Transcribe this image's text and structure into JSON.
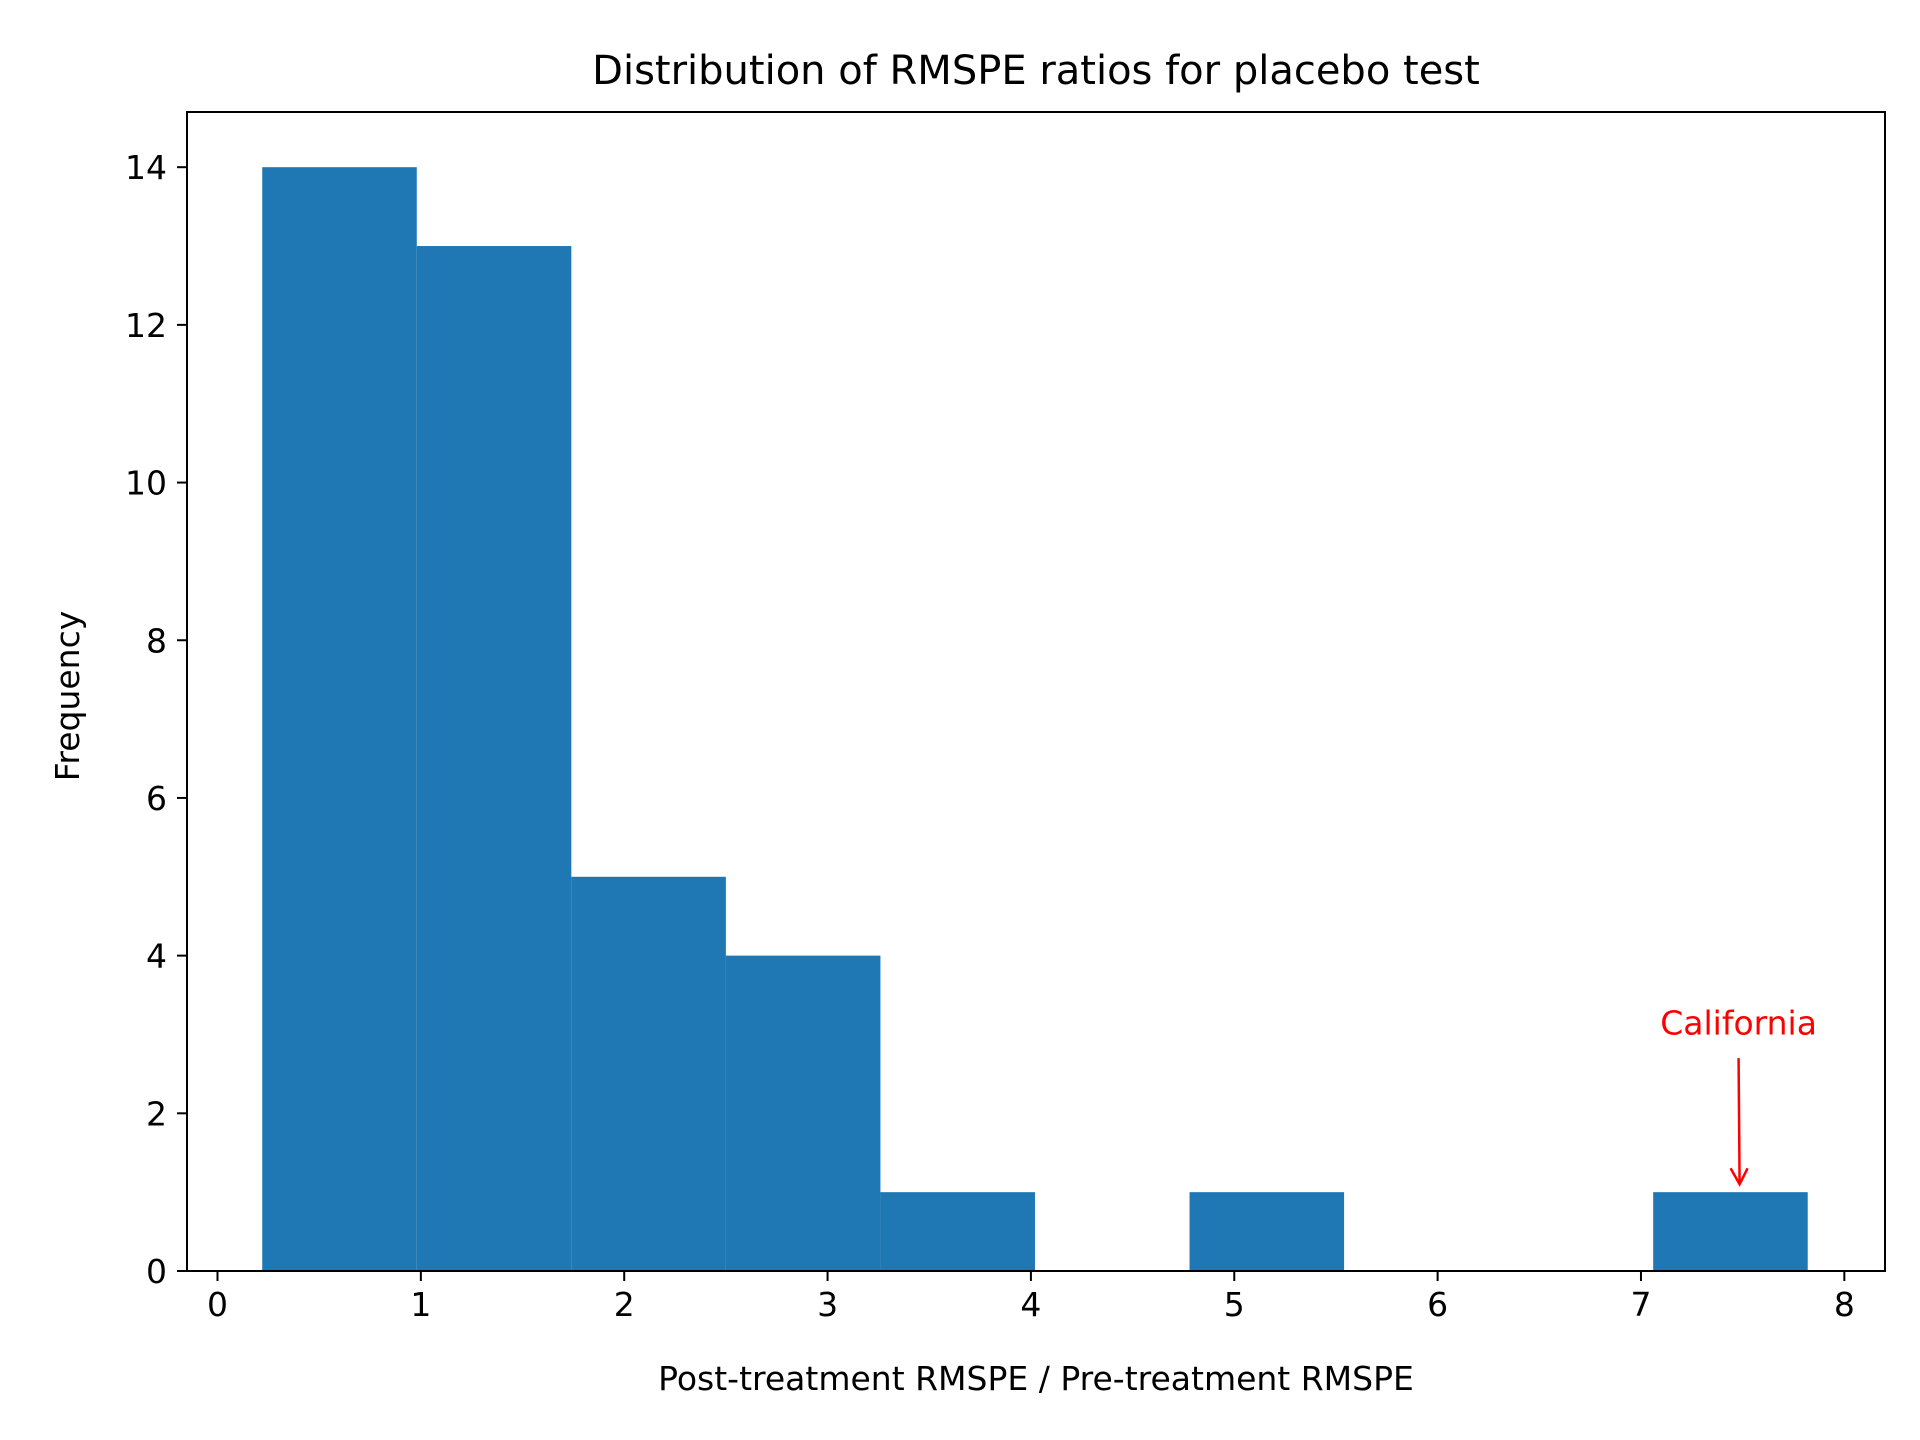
{
  "chart_data": {
    "type": "bar",
    "title": "Distribution of RMSPE ratios for placebo test",
    "xlabel": "Post-treatment RMSPE / Pre-treatment RMSPE",
    "ylabel": "Frequency",
    "xlim": [
      -0.15,
      8.2
    ],
    "ylim": [
      0,
      14.7
    ],
    "x_ticks": [
      0,
      1,
      2,
      3,
      4,
      5,
      6,
      7,
      8
    ],
    "y_ticks": [
      0,
      2,
      4,
      6,
      8,
      10,
      12,
      14
    ],
    "bins": [
      {
        "start": 0.22,
        "end": 0.98,
        "count": 14
      },
      {
        "start": 0.98,
        "end": 1.74,
        "count": 13
      },
      {
        "start": 1.74,
        "end": 2.5,
        "count": 5
      },
      {
        "start": 2.5,
        "end": 3.26,
        "count": 4
      },
      {
        "start": 3.26,
        "end": 4.02,
        "count": 1
      },
      {
        "start": 4.02,
        "end": 4.78,
        "count": 0
      },
      {
        "start": 4.78,
        "end": 5.54,
        "count": 1
      },
      {
        "start": 5.54,
        "end": 6.3,
        "count": 0
      },
      {
        "start": 6.3,
        "end": 7.06,
        "count": 0
      },
      {
        "start": 7.06,
        "end": 7.82,
        "count": 1
      }
    ],
    "bar_color": "#1f77b4",
    "grid": false,
    "annotation": {
      "text": "California",
      "color": "#ff0000",
      "text_x": 7.48,
      "text_y": 3.0,
      "arrow_from": [
        7.48,
        2.7
      ],
      "arrow_to": [
        7.48,
        1.1
      ]
    }
  }
}
